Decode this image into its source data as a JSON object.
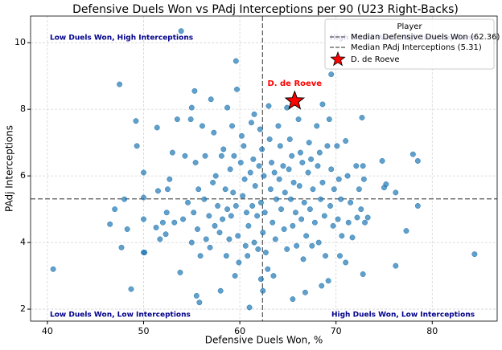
{
  "chart_data": {
    "type": "scatter",
    "title": "Defensive Duels Won vs PAdj Interceptions per 90 (U23 Right-Backs)",
    "xlabel": "Defensive Duels Won, %",
    "ylabel": "PAdj Interceptions",
    "xlim": [
      38.25,
      86.75
    ],
    "ylim": [
      1.64,
      10.8
    ],
    "xticks": [
      40,
      50,
      60,
      70,
      80
    ],
    "yticks": [
      2,
      4,
      6,
      8,
      10
    ],
    "grid": true,
    "legend_title": "Player",
    "legend_position": "upper right",
    "reference_lines": [
      {
        "name": "Median Defensive Duels Won (62.36)",
        "axis": "x",
        "value": 62.36,
        "color": "#555555"
      },
      {
        "name": "Median PAdj Interceptions (5.31)",
        "axis": "y",
        "value": 5.31,
        "color": "#555555"
      }
    ],
    "quadrant_labels": [
      "Low Duels Won, High Interceptions",
      "High Duels Won, High Interceptions",
      "Low Duels Won, Low Interceptions",
      "High Duels Won, Low Interceptions"
    ],
    "series": [
      {
        "color": "#1f77b4",
        "x": [
          40.6,
          47.5,
          49.2,
          49.3,
          48.7,
          46.5,
          47.0,
          47.7,
          48.0,
          48.3,
          53.9,
          59.6,
          69.5,
          72.7,
          78.0,
          78.5,
          75.2,
          76.2,
          78.5,
          77.3,
          76.2,
          84.4,
          72.8,
          71.0,
          69.2,
          68.5,
          65.5,
          61.0,
          58.0,
          55.5,
          55.8,
          50.0,
          59.5,
          62.2,
          62.4,
          66.8,
          57.0,
          58.7,
          59.7,
          64.9,
          68.6,
          63.0,
          61.5,
          50.0,
          50.0,
          50.0,
          50.1,
          51.4,
          51.5,
          51.3,
          51.7,
          52.3,
          52.7,
          52.5,
          52.4,
          52.0,
          53.0,
          53.5,
          53.2,
          53.8,
          54.1,
          54.3,
          54.6,
          54.9,
          55.0,
          55.3,
          55.4,
          55.7,
          55.2,
          55.6,
          55.0,
          55.9,
          56.1,
          56.4,
          56.3,
          56.8,
          56.5,
          56.9,
          57.3,
          57.5,
          57.2,
          57.7,
          57.4,
          57.9,
          58.3,
          58.1,
          58.5,
          58.7,
          58.2,
          58.9,
          58.6,
          59.2,
          59.4,
          59.0,
          59.3,
          59.6,
          59.1,
          59.8,
          59.9,
          60.2,
          60.4,
          60.1,
          60.5,
          60.3,
          60.7,
          60.9,
          60.6,
          60.8,
          61.2,
          61.4,
          61.1,
          61.6,
          61.3,
          61.8,
          61.5,
          61.9,
          62.1,
          62.3,
          62.0,
          62.5,
          62.2,
          62.6,
          62.4,
          62.7,
          62.9,
          63.1,
          63.3,
          63.6,
          63.2,
          63.8,
          63.4,
          63.7,
          63.5,
          64.0,
          64.2,
          64.5,
          64.1,
          64.7,
          64.3,
          64.6,
          64.9,
          65.2,
          65.4,
          65.1,
          65.6,
          65.3,
          65.8,
          65.5,
          65.9,
          66.1,
          66.3,
          66.5,
          66.2,
          66.7,
          66.4,
          66.9,
          66.6,
          67.2,
          67.4,
          67.1,
          67.6,
          67.3,
          67.8,
          67.5,
          68.0,
          68.3,
          68.1,
          68.6,
          68.4,
          68.8,
          68.2,
          68.9,
          69.3,
          69.1,
          69.5,
          69.8,
          69.4,
          69.7,
          70.1,
          70.3,
          70.5,
          70.2,
          70.6,
          70.4,
          71.0,
          71.2,
          71.5,
          71.3,
          71.7,
          72.1,
          72.4,
          72.2,
          72.8,
          72.9,
          72.6,
          73.0,
          73.3,
          74.8,
          75.0
        ],
        "y": [
          3.2,
          8.75,
          7.65,
          6.9,
          2.6,
          4.55,
          5.0,
          3.85,
          5.3,
          4.4,
          10.35,
          9.45,
          9.05,
          7.75,
          6.65,
          6.45,
          5.75,
          5.5,
          5.1,
          4.35,
          3.3,
          3.65,
          3.05,
          3.4,
          2.85,
          2.7,
          2.3,
          2.05,
          2.55,
          2.4,
          2.2,
          3.7,
          3.0,
          2.9,
          2.55,
          2.5,
          8.3,
          8.05,
          8.6,
          8.05,
          8.15,
          8.1,
          7.85,
          6.1,
          5.35,
          4.7,
          3.7,
          7.45,
          5.55,
          4.45,
          4.1,
          4.25,
          5.9,
          5.6,
          4.9,
          4.6,
          6.7,
          7.7,
          4.6,
          3.1,
          4.7,
          6.6,
          5.2,
          7.7,
          8.05,
          8.55,
          6.4,
          5.6,
          4.9,
          4.4,
          4.0,
          3.6,
          7.5,
          6.6,
          5.3,
          4.8,
          4.1,
          3.85,
          7.3,
          6.0,
          5.8,
          5.1,
          4.5,
          4.3,
          6.8,
          6.6,
          5.6,
          5.0,
          4.7,
          4.1,
          3.6,
          7.5,
          6.6,
          6.2,
          5.5,
          5.1,
          4.8,
          4.2,
          3.4,
          7.2,
          6.9,
          6.4,
          5.9,
          5.4,
          4.9,
          4.5,
          3.9,
          3.6,
          7.6,
          6.5,
          6.1,
          5.7,
          5.1,
          4.8,
          4.0,
          3.8,
          7.4,
          6.8,
          6.3,
          6.0,
          5.2,
          4.9,
          4.3,
          3.7,
          3.2,
          7.1,
          6.4,
          6.1,
          5.6,
          5.3,
          4.6,
          4.1,
          3.0,
          7.5,
          6.9,
          6.3,
          5.9,
          5.5,
          5.0,
          4.4,
          3.8,
          7.1,
          6.6,
          6.2,
          5.8,
          5.3,
          4.9,
          4.5,
          3.9,
          7.7,
          6.7,
          6.4,
          5.7,
          5.2,
          4.7,
          4.2,
          3.5,
          7.0,
          6.5,
          6.1,
          5.6,
          5.0,
          4.6,
          3.9,
          7.5,
          6.7,
          6.3,
          5.8,
          5.3,
          4.8,
          4.0,
          3.6,
          7.7,
          6.9,
          6.2,
          5.6,
          5.1,
          4.5,
          6.9,
          5.9,
          5.3,
          4.7,
          4.2,
          3.6,
          7.05,
          6.0,
          5.2,
          4.6,
          4.15,
          6.3,
          5.6,
          4.75,
          6.3,
          5.9,
          5.0,
          4.6,
          4.75,
          6.45,
          5.65
        ]
      },
      {
        "name": "D. de Roeve",
        "color": "#ff0000",
        "x": [
          65.7
        ],
        "y": [
          8.25
        ],
        "label": "D. de Roeve"
      }
    ]
  }
}
